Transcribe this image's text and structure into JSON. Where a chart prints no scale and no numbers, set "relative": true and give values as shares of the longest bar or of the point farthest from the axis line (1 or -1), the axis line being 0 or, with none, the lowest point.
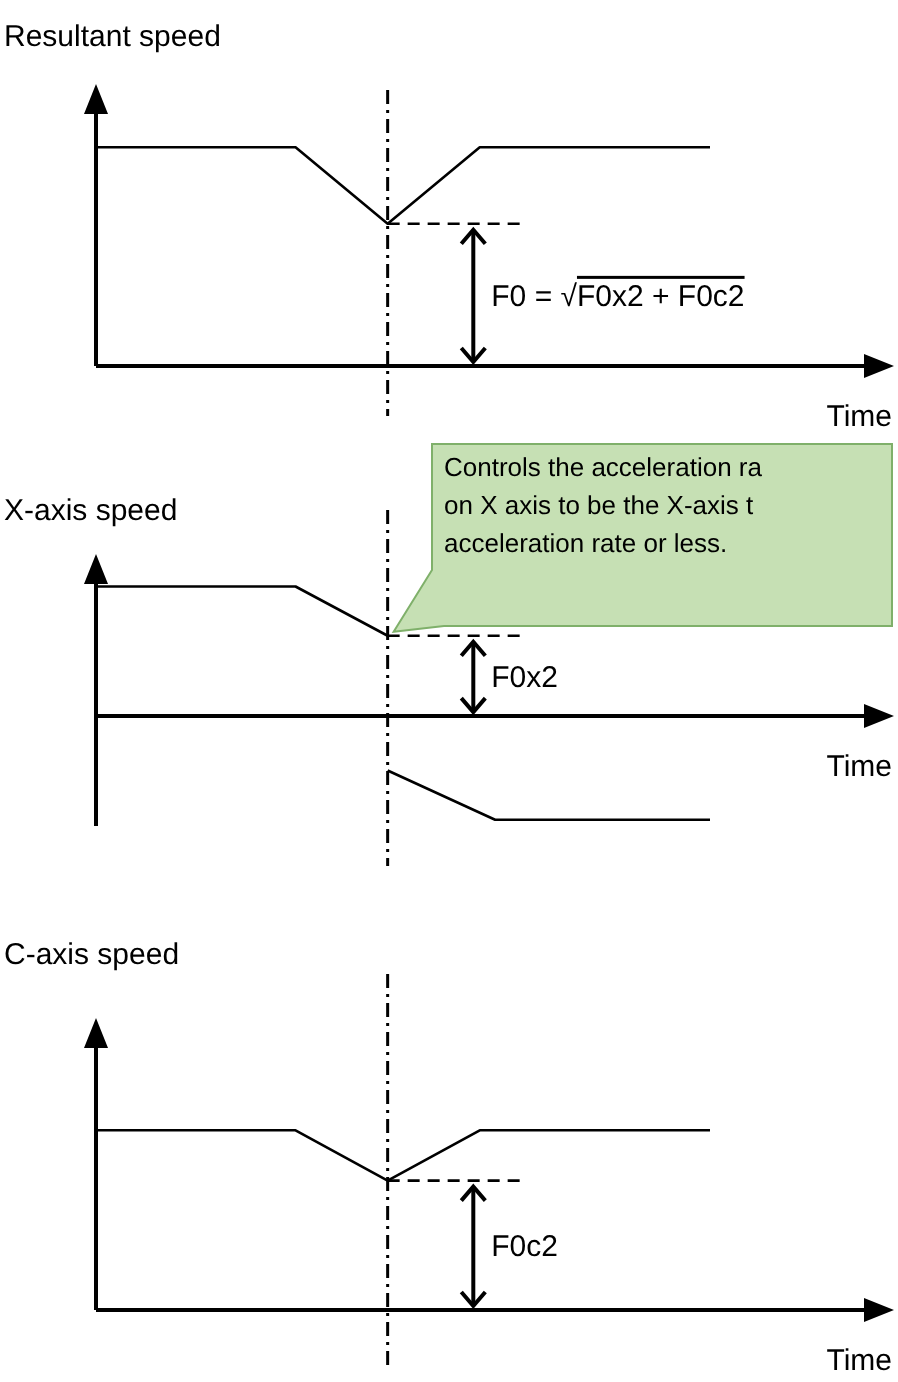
{
  "chart_data": [
    {
      "type": "line",
      "ylabel": "Resultant speed",
      "xlabel": "Time",
      "relative": true,
      "tick_labels": false,
      "categories": [
        null,
        null,
        null,
        null,
        null,
        null,
        null,
        null,
        null,
        null,
        null,
        null,
        null,
        null,
        null,
        null,
        null,
        null,
        null,
        null,
        null,
        null,
        null,
        null,
        null,
        null,
        null,
        null,
        null,
        null,
        null,
        null,
        null,
        null,
        null,
        null,
        null,
        null,
        null,
        null,
        null
      ],
      "series": [
        {
          "color": "#000000",
          "values": [
            1,
            null,
            null,
            null,
            null,
            null,
            null,
            null,
            null,
            null,
            null,
            null,
            null,
            1,
            null,
            null,
            null,
            null,
            null,
            0.65,
            null,
            null,
            null,
            null,
            null,
            1,
            null,
            null,
            null,
            null,
            null,
            null,
            null,
            null,
            null,
            null,
            null,
            null,
            null,
            null,
            1
          ]
        },
        {
          "color": "#000000",
          "line_style": "dashed",
          "values": [
            null,
            null,
            null,
            null,
            null,
            null,
            null,
            null,
            null,
            null,
            null,
            null,
            null,
            null,
            null,
            null,
            null,
            null,
            null,
            0.65,
            null,
            null,
            null,
            null,
            null,
            null,
            null,
            null,
            0.65,
            null,
            null,
            null,
            null,
            null,
            null,
            null,
            null,
            null,
            null,
            null,
            null
          ]
        }
      ],
      "annotations": [
        "F0 = √F0x2 + F0c2"
      ]
    },
    {
      "type": "line",
      "ylabel": "X-axis speed",
      "xlabel": "Time",
      "relative": true,
      "tick_labels": false,
      "categories": [
        null,
        null,
        null,
        null,
        null,
        null,
        null,
        null,
        null,
        null,
        null,
        null,
        null,
        null,
        null,
        null,
        null,
        null,
        null,
        null,
        null,
        null,
        null,
        null,
        null,
        null,
        null,
        null,
        null,
        null,
        null,
        null,
        null,
        null,
        null,
        null,
        null,
        null,
        null,
        null,
        null
      ],
      "series": [
        {
          "color": "#000000",
          "values": [
            1,
            null,
            null,
            null,
            null,
            null,
            null,
            null,
            null,
            null,
            null,
            null,
            null,
            1,
            null,
            null,
            null,
            null,
            null,
            0.62,
            null,
            null,
            null,
            null,
            null,
            null,
            null,
            null,
            null,
            null,
            null,
            null,
            null,
            null,
            null,
            null,
            null,
            null,
            null,
            null,
            null
          ]
        },
        {
          "color": "#000000",
          "values": [
            null,
            null,
            null,
            null,
            null,
            null,
            null,
            null,
            null,
            null,
            null,
            null,
            null,
            null,
            null,
            null,
            null,
            null,
            null,
            -0.42,
            null,
            null,
            null,
            null,
            null,
            null,
            -0.8,
            null,
            null,
            null,
            null,
            null,
            null,
            null,
            null,
            null,
            null,
            null,
            null,
            null,
            -0.8
          ]
        },
        {
          "color": "#000000",
          "line_style": "dashed",
          "values": [
            null,
            null,
            null,
            null,
            null,
            null,
            null,
            null,
            null,
            null,
            null,
            null,
            null,
            null,
            null,
            null,
            null,
            null,
            null,
            0.62,
            null,
            null,
            null,
            null,
            null,
            null,
            null,
            null,
            0.62,
            null,
            null,
            null,
            null,
            null,
            null,
            null,
            null,
            null,
            null,
            null,
            null
          ]
        }
      ],
      "annotations": [
        "F0x2",
        "Controls the acceleration ra\non X axis to be the X-axis t\nacceleration rate or less."
      ]
    },
    {
      "type": "line",
      "ylabel": "C-axis speed",
      "xlabel": "Time",
      "relative": true,
      "tick_labels": false,
      "categories": [
        null,
        null,
        null,
        null,
        null,
        null,
        null,
        null,
        null,
        null,
        null,
        null,
        null,
        null,
        null,
        null,
        null,
        null,
        null,
        null,
        null,
        null,
        null,
        null,
        null,
        null,
        null,
        null,
        null,
        null,
        null,
        null,
        null,
        null,
        null,
        null,
        null,
        null,
        null,
        null,
        null
      ],
      "series": [
        {
          "color": "#000000",
          "values": [
            1,
            null,
            null,
            null,
            null,
            null,
            null,
            null,
            null,
            null,
            null,
            null,
            null,
            1,
            null,
            null,
            null,
            null,
            null,
            0.72,
            null,
            null,
            null,
            null,
            null,
            1,
            null,
            null,
            null,
            null,
            null,
            null,
            null,
            null,
            null,
            null,
            null,
            null,
            null,
            null,
            1
          ]
        },
        {
          "color": "#000000",
          "line_style": "dashed",
          "values": [
            null,
            null,
            null,
            null,
            null,
            null,
            null,
            null,
            null,
            null,
            null,
            null,
            null,
            null,
            null,
            null,
            null,
            null,
            null,
            0.72,
            null,
            null,
            null,
            null,
            null,
            null,
            null,
            null,
            0.72,
            null,
            null,
            null,
            null,
            null,
            null,
            null,
            null,
            null,
            null,
            null,
            null
          ]
        }
      ],
      "annotations": [
        "F0c2"
      ]
    }
  ]
}
